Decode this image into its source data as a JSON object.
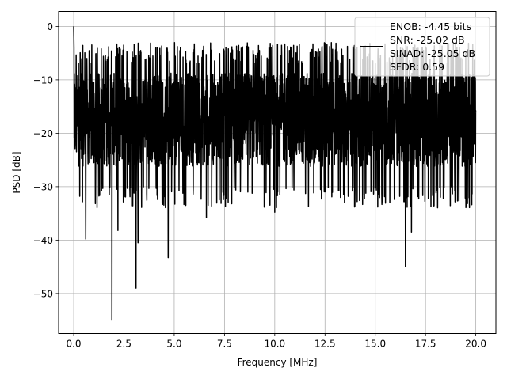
{
  "chart_data": {
    "type": "line",
    "title": "",
    "xlabel": "Frequency [MHz]",
    "ylabel": "PSD [dB]",
    "xlim": [
      -0.75,
      21.0
    ],
    "ylim": [
      -57.5,
      2.8
    ],
    "xticks": [
      0.0,
      2.5,
      5.0,
      7.5,
      10.0,
      12.5,
      15.0,
      17.5,
      20.0
    ],
    "xtick_labels": [
      "0.0",
      "2.5",
      "5.0",
      "7.5",
      "10.0",
      "12.5",
      "15.0",
      "17.5",
      "20.0"
    ],
    "yticks": [
      0,
      -10,
      -20,
      -30,
      -40,
      -50
    ],
    "ytick_labels": [
      "0",
      "−10",
      "−20",
      "−30",
      "−40",
      "−50"
    ],
    "grid": true,
    "legend_position": "top-right",
    "series": [
      {
        "color": "#000000",
        "x_range": [
          0.0,
          20.0
        ],
        "typical_band_db": [
          -30,
          -5
        ],
        "peak_db": 0.0,
        "notable_dips": [
          {
            "x": 1.9,
            "y": -55.0
          },
          {
            "x": 3.1,
            "y": -49.0
          },
          {
            "x": 4.7,
            "y": -43.3
          },
          {
            "x": 16.5,
            "y": -45.0
          },
          {
            "x": 2.2,
            "y": -38.2
          },
          {
            "x": 0.6,
            "y": -39.8
          },
          {
            "x": 3.2,
            "y": -40.5
          },
          {
            "x": 10.0,
            "y": -34.8
          },
          {
            "x": 6.6,
            "y": -35.8
          },
          {
            "x": 16.8,
            "y": -38.5
          }
        ]
      }
    ],
    "legend": {
      "entries": [
        "ENOB: -4.45 bits",
        "SNR: -25.02 dB",
        "SINAD: -25.05 dB",
        "SFDR: 0.59"
      ]
    }
  }
}
